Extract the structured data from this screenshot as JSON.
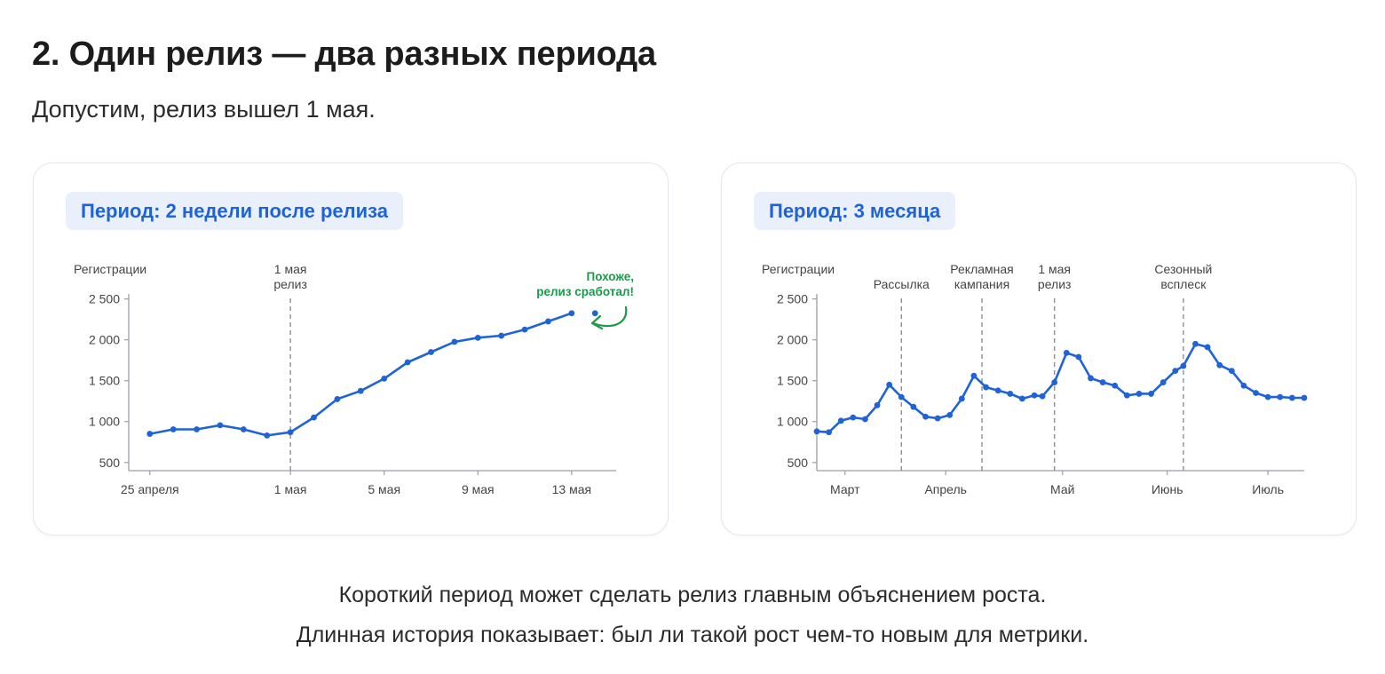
{
  "page": {
    "title": "2. Один релиз — два разных периода",
    "subtitle": "Допустим, релиз вышел 1 мая.",
    "caption_line1": "Короткий период может сделать релиз главным объяснением роста.",
    "caption_line2": "Длинная история показывает: был ли такой рост чем-то новым для метрики."
  },
  "colors": {
    "line": "#1f63d6",
    "badge_bg": "#e9f0fc",
    "badge_text": "#1f63d6",
    "annotation_green": "#1b9a4a",
    "axis": "#9aa0a6",
    "dashed_marker": "#8a8f94",
    "text": "#444444"
  },
  "cards": [
    {
      "badge": "Период: 2 недели после релиза"
    },
    {
      "badge": "Период: 3 месяца"
    }
  ],
  "chart_data": [
    {
      "type": "line",
      "title": "Период: 2 недели после релиза",
      "ylabel": "Регистрации",
      "xlabel": "",
      "ylim": [
        400,
        2550
      ],
      "yticks": [
        500,
        1000,
        1500,
        2000,
        2500
      ],
      "ytick_labels": [
        "500",
        "1 000",
        "1 500",
        "2 000",
        "2 500"
      ],
      "x_domain": [
        -6.9,
        13.9
      ],
      "x_unit": "дни от 1 мая",
      "xtick_positions": [
        -6,
        0,
        4,
        8,
        12
      ],
      "xtick_labels": [
        "25 апреля",
        "1 мая",
        "5 мая",
        "9 мая",
        "13 мая"
      ],
      "grid": false,
      "series": [
        {
          "x": [
            -6,
            -5,
            -4,
            -3,
            -2,
            -1,
            0,
            1,
            2,
            3,
            4,
            5,
            6,
            7,
            8,
            9,
            10,
            11,
            12,
            13
          ],
          "y": [
            850,
            905,
            905,
            955,
            905,
            830,
            870,
            1050,
            1275,
            1375,
            1525,
            1725,
            1850,
            1975,
            2025,
            2050,
            2125,
            2225,
            2325,
            2325
          ],
          "line_end_index": 18
        }
      ],
      "markers": [
        {
          "x": 0,
          "label_lines": [
            "1 мая",
            "релиз"
          ]
        }
      ],
      "annotation": {
        "lines": [
          "Похоже,",
          "релиз сработал!"
        ],
        "color": "#1b9a4a"
      }
    },
    {
      "type": "line",
      "title": "Период: 3 месяца",
      "ylabel": "Регистрации",
      "xlabel": "",
      "ylim": [
        400,
        2550
      ],
      "yticks": [
        500,
        1000,
        1500,
        2000,
        2500
      ],
      "ytick_labels": [
        "500",
        "1 000",
        "1 500",
        "2 000",
        "2 500"
      ],
      "x_domain": [
        -59,
        62
      ],
      "x_unit": "дни от 1 мая",
      "xtick_positions": [
        -52,
        -27,
        2,
        28,
        53
      ],
      "xtick_labels": [
        "Март",
        "Апрель",
        "Май",
        "Июнь",
        "Июль"
      ],
      "grid": false,
      "series": [
        {
          "x": [
            -59,
            -56,
            -53,
            -50,
            -47,
            -44,
            -41,
            -38,
            -35,
            -32,
            -29,
            -26,
            -23,
            -20,
            -17,
            -14,
            -11,
            -8,
            -5,
            -3,
            0,
            3,
            6,
            9,
            12,
            15,
            18,
            21,
            24,
            27,
            30,
            32,
            35,
            38,
            41,
            44,
            47,
            50,
            53,
            56,
            59,
            62
          ],
          "y": [
            880,
            870,
            1010,
            1050,
            1030,
            1200,
            1450,
            1300,
            1180,
            1060,
            1040,
            1080,
            1280,
            1560,
            1420,
            1380,
            1340,
            1280,
            1320,
            1310,
            1480,
            1840,
            1790,
            1530,
            1480,
            1440,
            1320,
            1340,
            1340,
            1480,
            1620,
            1680,
            1950,
            1910,
            1690,
            1620,
            1440,
            1350,
            1300,
            1300,
            1290,
            1290
          ],
          "line_end_index": 41
        }
      ],
      "markers": [
        {
          "x": -38,
          "label_lines": [
            "Рассылка"
          ]
        },
        {
          "x": -18,
          "label_lines": [
            "Рекламная",
            "кампания"
          ]
        },
        {
          "x": 0,
          "label_lines": [
            "1 мая",
            "релиз"
          ]
        },
        {
          "x": 32,
          "label_lines": [
            "Сезонный",
            "всплеск"
          ]
        }
      ]
    }
  ]
}
